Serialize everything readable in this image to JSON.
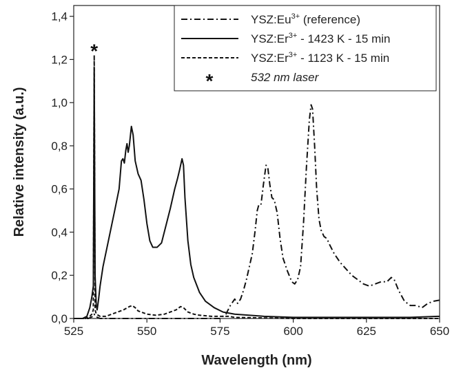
{
  "chart_data": {
    "type": "line",
    "xlabel": "Wavelength (nm)",
    "ylabel": "Relative intensity (a.u.)",
    "xlim": [
      525,
      650
    ],
    "ylim": [
      0.0,
      1.45
    ],
    "x_ticks": [
      525,
      550,
      575,
      600,
      625,
      650
    ],
    "x_tick_labels": [
      "525",
      "550",
      "575",
      "600",
      "625",
      "650"
    ],
    "y_ticks": [
      0.0,
      0.2,
      0.4,
      0.6,
      0.8,
      1.0,
      1.2,
      1.4
    ],
    "y_tick_labels": [
      "0,0",
      "0,2",
      "0,4",
      "0,6",
      "0,8",
      "1,0",
      "1,2",
      "1,4"
    ],
    "grid": false,
    "legend_position": "top-right",
    "legend": [
      {
        "base": "YSZ:Eu",
        "sup": "3+",
        "rest": " (reference)",
        "style": "dashdot"
      },
      {
        "base": "YSZ:Er",
        "sup": "3+",
        "rest": " - 1423 K - 15 min",
        "style": "solid"
      },
      {
        "base": "YSZ:Er",
        "sup": "3+",
        "rest": " - 1123 K - 15 min",
        "style": "dashed"
      },
      {
        "base": "",
        "sup": "",
        "rest": "532 nm laser",
        "style": "asterisk"
      }
    ],
    "annotations": [
      {
        "text": "*",
        "x": 532,
        "y": 1.26
      }
    ],
    "series": [
      {
        "style": "solid",
        "points": [
          [
            525,
            0.0
          ],
          [
            528,
            0.0
          ],
          [
            529.5,
            0.01
          ],
          [
            530.5,
            0.05
          ],
          [
            531.2,
            0.1
          ],
          [
            531.7,
            0.15
          ],
          [
            532,
            1.16
          ],
          [
            532.3,
            0.2
          ],
          [
            532.7,
            0.06
          ],
          [
            533,
            0.04
          ],
          [
            533.5,
            0.09
          ],
          [
            534,
            0.15
          ],
          [
            535,
            0.24
          ],
          [
            537,
            0.37
          ],
          [
            539,
            0.5
          ],
          [
            540.5,
            0.6
          ],
          [
            541.3,
            0.73
          ],
          [
            541.8,
            0.74
          ],
          [
            542.3,
            0.72
          ],
          [
            542.8,
            0.78
          ],
          [
            543.2,
            0.81
          ],
          [
            543.6,
            0.77
          ],
          [
            544,
            0.8
          ],
          [
            544.7,
            0.89
          ],
          [
            545.3,
            0.85
          ],
          [
            546,
            0.73
          ],
          [
            547,
            0.67
          ],
          [
            548,
            0.64
          ],
          [
            549,
            0.55
          ],
          [
            550,
            0.44
          ],
          [
            551,
            0.36
          ],
          [
            552,
            0.33
          ],
          [
            553.5,
            0.33
          ],
          [
            555,
            0.35
          ],
          [
            556.5,
            0.43
          ],
          [
            558,
            0.51
          ],
          [
            559.5,
            0.6
          ],
          [
            560.5,
            0.65
          ],
          [
            561.2,
            0.69
          ],
          [
            562,
            0.74
          ],
          [
            562.5,
            0.71
          ],
          [
            563,
            0.56
          ],
          [
            564,
            0.36
          ],
          [
            565,
            0.25
          ],
          [
            566,
            0.19
          ],
          [
            568,
            0.12
          ],
          [
            570,
            0.08
          ],
          [
            573,
            0.05
          ],
          [
            576,
            0.03
          ],
          [
            580,
            0.02
          ],
          [
            590,
            0.01
          ],
          [
            600,
            0.005
          ],
          [
            610,
            0.005
          ],
          [
            640,
            0.005
          ],
          [
            650,
            0.01
          ]
        ]
      },
      {
        "style": "dashed",
        "points": [
          [
            525,
            0.0
          ],
          [
            529,
            0.0
          ],
          [
            530.5,
            0.01
          ],
          [
            531.2,
            0.02
          ],
          [
            531.7,
            0.04
          ],
          [
            532,
            1.22
          ],
          [
            532.3,
            0.04
          ],
          [
            532.7,
            0.02
          ],
          [
            534,
            0.01
          ],
          [
            536,
            0.01
          ],
          [
            538,
            0.02
          ],
          [
            540,
            0.03
          ],
          [
            542,
            0.04
          ],
          [
            544,
            0.055
          ],
          [
            545,
            0.06
          ],
          [
            546,
            0.05
          ],
          [
            547,
            0.035
          ],
          [
            548,
            0.03
          ],
          [
            550,
            0.02
          ],
          [
            553,
            0.015
          ],
          [
            556,
            0.02
          ],
          [
            558,
            0.03
          ],
          [
            560,
            0.04
          ],
          [
            561.5,
            0.055
          ],
          [
            562.5,
            0.05
          ],
          [
            564,
            0.03
          ],
          [
            566,
            0.02
          ],
          [
            568,
            0.015
          ],
          [
            572,
            0.01
          ],
          [
            578,
            0.01
          ],
          [
            580,
            0.005
          ],
          [
            600,
            0.0
          ],
          [
            650,
            0.0
          ]
        ]
      },
      {
        "style": "dashdot",
        "points": [
          [
            525,
            0.0
          ],
          [
            530,
            0.0
          ],
          [
            531.6,
            0.01
          ],
          [
            532,
            0.02
          ],
          [
            532.3,
            0.01
          ],
          [
            534,
            0.0
          ],
          [
            575,
            0.0
          ],
          [
            577,
            0.02
          ],
          [
            578.5,
            0.06
          ],
          [
            580,
            0.09
          ],
          [
            581,
            0.07
          ],
          [
            582,
            0.09
          ],
          [
            583,
            0.13
          ],
          [
            584,
            0.18
          ],
          [
            585,
            0.24
          ],
          [
            586,
            0.3
          ],
          [
            587,
            0.41
          ],
          [
            587.7,
            0.5
          ],
          [
            588.3,
            0.53
          ],
          [
            589,
            0.53
          ],
          [
            589.8,
            0.62
          ],
          [
            590.7,
            0.71
          ],
          [
            591.3,
            0.7
          ],
          [
            592,
            0.62
          ],
          [
            592.7,
            0.56
          ],
          [
            593.5,
            0.55
          ],
          [
            594.5,
            0.49
          ],
          [
            595.5,
            0.37
          ],
          [
            596.5,
            0.28
          ],
          [
            598,
            0.22
          ],
          [
            599.5,
            0.17
          ],
          [
            600.5,
            0.16
          ],
          [
            601.5,
            0.18
          ],
          [
            602.5,
            0.24
          ],
          [
            603.5,
            0.44
          ],
          [
            604.5,
            0.7
          ],
          [
            605.5,
            0.92
          ],
          [
            606.1,
            0.99
          ],
          [
            606.6,
            0.97
          ],
          [
            607.3,
            0.8
          ],
          [
            608,
            0.6
          ],
          [
            608.8,
            0.46
          ],
          [
            609.5,
            0.41
          ],
          [
            610.5,
            0.38
          ],
          [
            611.5,
            0.37
          ],
          [
            612.5,
            0.34
          ],
          [
            614,
            0.3
          ],
          [
            616,
            0.26
          ],
          [
            618,
            0.23
          ],
          [
            620,
            0.2
          ],
          [
            622,
            0.18
          ],
          [
            624,
            0.16
          ],
          [
            626,
            0.15
          ],
          [
            628,
            0.16
          ],
          [
            630,
            0.17
          ],
          [
            632,
            0.17
          ],
          [
            633.5,
            0.19
          ],
          [
            634.5,
            0.18
          ],
          [
            636,
            0.13
          ],
          [
            638,
            0.08
          ],
          [
            640,
            0.06
          ],
          [
            642,
            0.06
          ],
          [
            644,
            0.05
          ],
          [
            646,
            0.07
          ],
          [
            648,
            0.08
          ],
          [
            650,
            0.085
          ]
        ]
      }
    ]
  }
}
